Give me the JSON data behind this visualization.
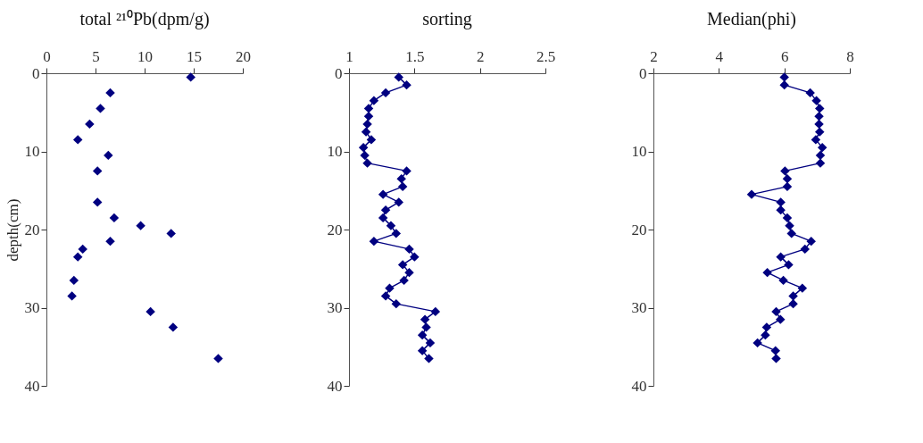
{
  "chart_data": [
    {
      "type": "scatter",
      "title": "total ²¹⁰Pb(dpm/g)",
      "ylabel": "depth(cm)",
      "marker": "diamond",
      "grid": false,
      "xlim": [
        0,
        20
      ],
      "xticks": [
        0,
        5,
        10,
        15,
        20
      ],
      "ylim": [
        40,
        0
      ],
      "yticks": [
        0,
        10,
        20,
        30,
        40
      ],
      "series": [
        {
          "color": "#000080",
          "x": [
            14.7,
            6.5,
            5.5,
            4.4,
            3.2,
            6.3,
            5.2,
            5.2,
            6.9,
            9.6,
            12.7,
            6.5,
            3.7,
            3.2,
            2.8,
            2.6,
            10.6,
            12.9,
            17.5
          ],
          "values": [
            0.5,
            2.5,
            4.5,
            6.5,
            8.5,
            10.5,
            12.5,
            16.5,
            18.5,
            19.5,
            20.5,
            21.5,
            22.5,
            23.5,
            26.5,
            28.5,
            30.5,
            32.5,
            36.5
          ]
        }
      ]
    },
    {
      "type": "line",
      "title": "sorting",
      "marker": "diamond",
      "grid": false,
      "xlim": [
        1,
        2.5
      ],
      "xticks": [
        1,
        1.5,
        2,
        2.5
      ],
      "ylim": [
        40,
        0
      ],
      "yticks": [
        0,
        10,
        20,
        30,
        40
      ],
      "series": [
        {
          "color": "#000080",
          "x": [
            1.38,
            1.44,
            1.28,
            1.19,
            1.15,
            1.15,
            1.14,
            1.13,
            1.17,
            1.11,
            1.12,
            1.14,
            1.44,
            1.4,
            1.41,
            1.26,
            1.38,
            1.28,
            1.26,
            1.32,
            1.36,
            1.19,
            1.46,
            1.5,
            1.41,
            1.46,
            1.42,
            1.31,
            1.28,
            1.36,
            1.66,
            1.58,
            1.59,
            1.56,
            1.62,
            1.56,
            1.61
          ],
          "values": [
            0.5,
            1.5,
            2.5,
            3.5,
            4.5,
            5.5,
            6.5,
            7.5,
            8.5,
            9.5,
            10.5,
            11.5,
            12.5,
            13.5,
            14.5,
            15.5,
            16.5,
            17.5,
            18.5,
            19.5,
            20.5,
            21.5,
            22.5,
            23.5,
            24.5,
            25.5,
            26.5,
            27.5,
            28.5,
            29.5,
            30.5,
            31.5,
            32.5,
            33.5,
            34.5,
            35.5,
            36.5
          ]
        }
      ]
    },
    {
      "type": "line",
      "title": "Median(phi)",
      "marker": "diamond",
      "grid": false,
      "xlim": [
        2,
        8
      ],
      "xticks": [
        2,
        4,
        6,
        8
      ],
      "ylim": [
        40,
        0
      ],
      "yticks": [
        0,
        10,
        20,
        30,
        40
      ],
      "series": [
        {
          "color": "#000080",
          "x": [
            6.0,
            6.0,
            6.79,
            6.98,
            7.08,
            7.06,
            7.06,
            7.08,
            6.96,
            7.16,
            7.1,
            7.1,
            6.02,
            6.09,
            6.09,
            5.0,
            5.89,
            5.89,
            6.09,
            6.16,
            6.22,
            6.82,
            6.63,
            5.89,
            6.13,
            5.48,
            5.97,
            6.55,
            6.27,
            6.27,
            5.75,
            5.88,
            5.46,
            5.42,
            5.18,
            5.73,
            5.75
          ],
          "values": [
            0.5,
            1.5,
            2.5,
            3.5,
            4.5,
            5.5,
            6.5,
            7.5,
            8.5,
            9.5,
            10.5,
            11.5,
            12.5,
            13.5,
            14.5,
            15.5,
            16.5,
            17.5,
            18.5,
            19.5,
            20.5,
            21.5,
            22.5,
            23.5,
            24.5,
            25.5,
            26.5,
            27.5,
            28.5,
            29.5,
            30.5,
            31.5,
            32.5,
            33.5,
            34.5,
            35.5,
            36.5
          ]
        }
      ]
    }
  ]
}
